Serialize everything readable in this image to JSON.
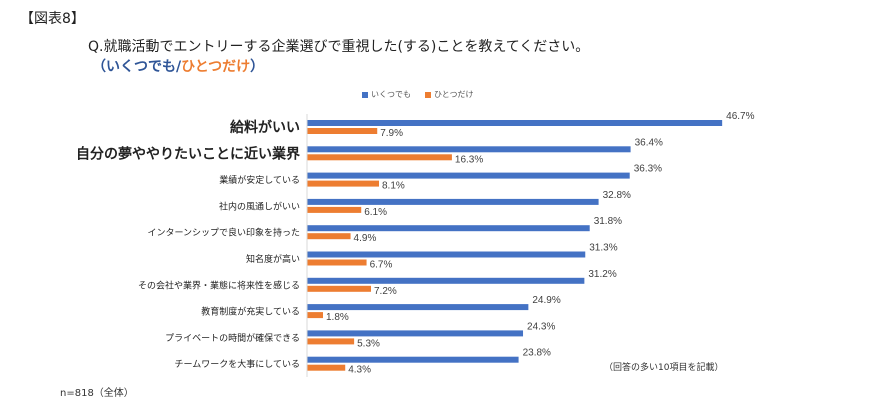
{
  "figure_label": "【図表8】",
  "question": "Q.就職活動でエントリーする企業選びで重視した(する)ことを教えてください。",
  "subquestion": {
    "open": "（",
    "part1": "いくつでも",
    "slash": "/",
    "part2": "ひとつだけ",
    "close": "）"
  },
  "note": "（回答の多い10項目を記載）",
  "sample": "n=818（全体）",
  "colors": {
    "series1": "#4472c4",
    "series2": "#ed7d31"
  },
  "chart_data": {
    "type": "bar",
    "orientation": "horizontal",
    "categories": [
      "給料がいい",
      "自分の夢ややりたいことに近い業界",
      "業績が安定している",
      "社内の風通しがいい",
      "インターンシップで良い印象を持った",
      "知名度が高い",
      "その会社や業界・業態に将来性を感じる",
      "教育制度が充実している",
      "プライベートの時間が確保できる",
      "チームワークを大事にしている"
    ],
    "emphasized_categories": [
      "給料がいい",
      "自分の夢ややりたいことに近い業界"
    ],
    "series": [
      {
        "name": "いくつでも",
        "values": [
          46.7,
          36.4,
          36.3,
          32.8,
          31.8,
          31.3,
          31.2,
          24.9,
          24.3,
          23.8
        ]
      },
      {
        "name": "ひとつだけ",
        "values": [
          7.9,
          16.3,
          8.1,
          6.1,
          4.9,
          6.7,
          7.2,
          1.8,
          5.3,
          4.3
        ]
      }
    ],
    "value_suffix": "%",
    "xlim": [
      0,
      50
    ],
    "legend_position": "top",
    "grid": false
  }
}
